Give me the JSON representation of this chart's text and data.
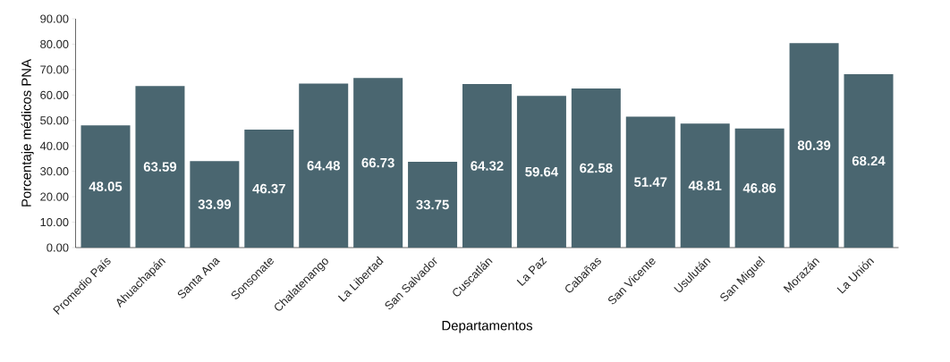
{
  "chart_data": {
    "type": "bar",
    "xlabel": "Departamentos",
    "ylabel": "Porcentaje médicos PNA",
    "categories": [
      "Promedio País",
      "Ahuachapán",
      "Santa Ana",
      "Sonsonate",
      "Chalatenango",
      "La Libertad",
      "San Salvador",
      "Cuscatlán",
      "La Paz",
      "Cabañas",
      "San Vicente",
      "Usulután",
      "San Miguel",
      "Morazán",
      "La Unión"
    ],
    "values": [
      48.05,
      63.59,
      33.99,
      46.37,
      64.48,
      66.73,
      33.75,
      64.32,
      59.64,
      62.58,
      51.47,
      48.81,
      46.86,
      80.39,
      68.24
    ],
    "color": "#4a6670",
    "data_labels": true,
    "grid": false,
    "ylim": [
      0,
      90
    ],
    "yticks": [
      {
        "value": 0,
        "label": "0.00"
      },
      {
        "value": 10,
        "label": "10.00"
      },
      {
        "value": 20,
        "label": "20.00"
      },
      {
        "value": 30,
        "label": "30.00"
      },
      {
        "value": 40,
        "label": "40.00"
      },
      {
        "value": 50,
        "label": "50.00"
      },
      {
        "value": 60,
        "label": "60.00"
      },
      {
        "value": 70,
        "label": "70.00"
      },
      {
        "value": 80,
        "label": "80.00"
      },
      {
        "value": 90,
        "label": "90.00"
      }
    ]
  }
}
